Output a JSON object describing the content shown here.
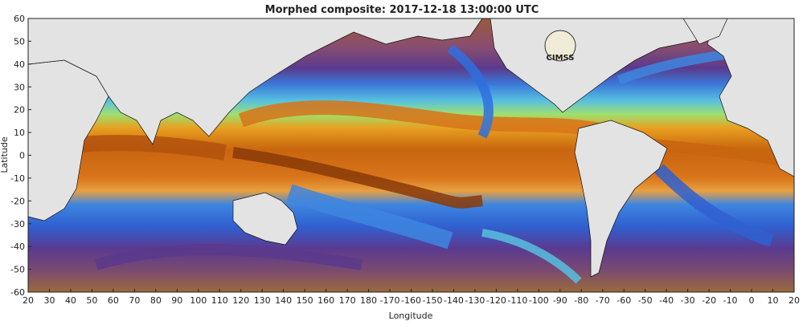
{
  "map": {
    "title": "Morphed composite: 2017-12-18 13:00:00 UTC",
    "xlabel": "Longitude",
    "ylabel": "Latitude",
    "logo_text": "CIMSS",
    "x_ticks": [
      "20",
      "30",
      "40",
      "50",
      "60",
      "70",
      "80",
      "90",
      "100",
      "110",
      "120",
      "130",
      "140",
      "150",
      "160",
      "170",
      "180",
      "-170",
      "-160",
      "-150",
      "-140",
      "-130",
      "-120",
      "-110",
      "-100",
      "-90",
      "-80",
      "-70",
      "-60",
      "-50",
      "-40",
      "-30",
      "-20",
      "-10",
      "0",
      "10",
      "20"
    ],
    "y_ticks": [
      "60",
      "50",
      "40",
      "30",
      "20",
      "10",
      "0",
      "-10",
      "-20",
      "-30",
      "-40",
      "-50",
      "-60"
    ],
    "lon_range": [
      20,
      380
    ],
    "lat_range": [
      -60,
      60
    ],
    "colors": {
      "land": "#e3e3e3",
      "coast": "#111111",
      "dry": "#6b3a78",
      "moist": "#2f6fe0",
      "humid": "#e8861a",
      "very_humid": "#7a2a05"
    }
  }
}
